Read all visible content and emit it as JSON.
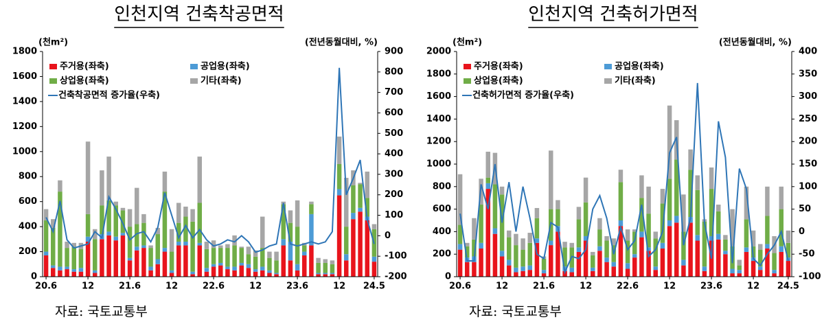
{
  "chart_data": [
    {
      "type": "bar",
      "stacked": true,
      "title": "인천지역 건축착공면적",
      "y_unit_label": "(천m²)",
      "y2_unit_label": "(전년동월대비, %)",
      "source": "자료: 국토교통부",
      "categories": [
        "20.6",
        null,
        null,
        null,
        null,
        null,
        "12",
        null,
        null,
        null,
        null,
        null,
        "21.6",
        null,
        null,
        null,
        null,
        null,
        "12",
        null,
        null,
        null,
        null,
        null,
        "22.6",
        null,
        null,
        null,
        null,
        null,
        "12",
        null,
        null,
        null,
        null,
        null,
        "23.6",
        null,
        null,
        null,
        null,
        null,
        "12",
        null,
        null,
        null,
        null,
        "24.5"
      ],
      "ylim": [
        0,
        1800
      ],
      "yticks": [
        0,
        200,
        400,
        600,
        800,
        1000,
        1200,
        1400,
        1600,
        1800
      ],
      "y2lim": [
        -200,
        900
      ],
      "y2ticks": [
        -200,
        -100,
        0,
        100,
        200,
        300,
        400,
        500,
        600,
        700,
        800,
        900
      ],
      "series": [
        {
          "name": "주거용(좌축)",
          "color": "#e8141c",
          "values": [
            170,
            70,
            50,
            60,
            40,
            40,
            280,
            30,
            300,
            330,
            290,
            330,
            130,
            210,
            230,
            50,
            100,
            200,
            30,
            250,
            250,
            20,
            250,
            40,
            80,
            90,
            60,
            50,
            90,
            70,
            40,
            50,
            30,
            20,
            250,
            130,
            50,
            170,
            250,
            20,
            20,
            20,
            650,
            130,
            460,
            520,
            450,
            120
          ]
        },
        {
          "name": "공업용(좌축)",
          "color": "#4d9bd6",
          "values": [
            30,
            20,
            30,
            20,
            20,
            30,
            40,
            20,
            40,
            30,
            30,
            20,
            20,
            30,
            20,
            30,
            40,
            30,
            20,
            30,
            30,
            20,
            20,
            30,
            20,
            20,
            20,
            30,
            20,
            30,
            20,
            30,
            20,
            10,
            50,
            150,
            50,
            30,
            250,
            10,
            10,
            10,
            50,
            50,
            50,
            30,
            30,
            40
          ]
        },
        {
          "name": "상업용(좌축)",
          "color": "#70ad47",
          "values": [
            250,
            300,
            600,
            150,
            180,
            150,
            180,
            250,
            230,
            250,
            250,
            180,
            250,
            180,
            180,
            150,
            200,
            450,
            150,
            150,
            200,
            400,
            320,
            150,
            130,
            120,
            150,
            170,
            120,
            80,
            100,
            150,
            100,
            100,
            280,
            150,
            300,
            50,
            80,
            80,
            80,
            70,
            200,
            220,
            220,
            190,
            150,
            220
          ]
        },
        {
          "name": "기타(좌축)",
          "color": "#a6a6a6",
          "values": [
            90,
            70,
            90,
            50,
            30,
            50,
            580,
            80,
            280,
            350,
            30,
            20,
            140,
            290,
            70,
            20,
            50,
            160,
            180,
            160,
            80,
            100,
            370,
            60,
            60,
            20,
            30,
            80,
            10,
            60,
            50,
            250,
            50,
            70,
            20,
            100,
            210,
            20,
            20,
            40,
            30,
            30,
            220,
            390,
            120,
            10,
            210,
            40
          ]
        },
        {
          "name": "건축착공면적 증가율(우축)",
          "type": "line",
          "axis": "y2",
          "color": "#2e75b6",
          "values": [
            90,
            20,
            170,
            -20,
            -60,
            -50,
            -40,
            20,
            -10,
            190,
            130,
            60,
            -20,
            10,
            20,
            -30,
            40,
            210,
            100,
            -10,
            50,
            -10,
            30,
            -20,
            -50,
            -40,
            -20,
            -30,
            0,
            -30,
            -80,
            -70,
            -50,
            -40,
            160,
            -40,
            -50,
            -40,
            -30,
            -40,
            -30,
            20,
            820,
            200,
            280,
            370,
            80,
            -40
          ]
        }
      ]
    },
    {
      "type": "bar",
      "stacked": true,
      "title": "인천지역 건축허가면적",
      "y_unit_label": "(천m²)",
      "y2_unit_label": "(전년동월대비, %)",
      "source": "자료: 국토교통부",
      "categories": [
        "20.6",
        null,
        null,
        null,
        null,
        null,
        "12",
        null,
        null,
        null,
        null,
        null,
        "21.6",
        null,
        null,
        null,
        null,
        null,
        "12",
        null,
        null,
        null,
        null,
        null,
        "22.6",
        null,
        null,
        null,
        null,
        null,
        "12",
        null,
        null,
        null,
        null,
        null,
        "23.6",
        null,
        null,
        null,
        null,
        null,
        "12",
        null,
        null,
        null,
        null,
        "24.5"
      ],
      "ylim": [
        0,
        2000
      ],
      "yticks": [
        0,
        200,
        400,
        600,
        800,
        1000,
        1200,
        1400,
        1600,
        1800,
        2000
      ],
      "y2lim": [
        -100,
        400
      ],
      "y2ticks": [
        -100,
        -50,
        0,
        50,
        100,
        150,
        200,
        250,
        300,
        350,
        400
      ],
      "series": [
        {
          "name": "주거용(좌축)",
          "color": "#e8141c",
          "values": [
            240,
            130,
            130,
            250,
            780,
            380,
            180,
            100,
            40,
            50,
            60,
            300,
            30,
            280,
            400,
            50,
            40,
            220,
            320,
            50,
            230,
            130,
            90,
            450,
            70,
            170,
            350,
            230,
            60,
            250,
            450,
            480,
            100,
            480,
            320,
            50,
            320,
            330,
            200,
            30,
            30,
            220,
            140,
            60,
            250,
            30,
            220,
            140
          ]
        },
        {
          "name": "공업용(좌축)",
          "color": "#4d9bd6",
          "values": [
            50,
            40,
            50,
            50,
            50,
            50,
            50,
            50,
            40,
            40,
            40,
            40,
            30,
            40,
            50,
            40,
            40,
            40,
            40,
            30,
            40,
            40,
            40,
            50,
            50,
            30,
            50,
            30,
            30,
            50,
            50,
            60,
            50,
            50,
            50,
            40,
            40,
            50,
            30,
            40,
            30,
            40,
            30,
            30,
            40,
            30,
            50,
            30
          ]
        },
        {
          "name": "상업용(좌축)",
          "color": "#70ad47",
          "values": [
            170,
            100,
            150,
            340,
            50,
            390,
            500,
            200,
            200,
            150,
            200,
            180,
            100,
            280,
            150,
            170,
            180,
            250,
            300,
            110,
            150,
            150,
            150,
            340,
            200,
            200,
            300,
            300,
            250,
            350,
            370,
            500,
            250,
            420,
            400,
            400,
            420,
            200,
            100,
            200,
            40,
            250,
            100,
            150,
            250,
            150,
            330,
            130
          ]
        },
        {
          "name": "기타(좌축)",
          "color": "#a6a6a6",
          "values": [
            450,
            30,
            190,
            230,
            230,
            280,
            70,
            60,
            100,
            100,
            90,
            90,
            20,
            520,
            80,
            50,
            40,
            110,
            220,
            30,
            100,
            40,
            60,
            110,
            100,
            20,
            200,
            240,
            60,
            130,
            650,
            350,
            330,
            180,
            130,
            20,
            190,
            60,
            40,
            330,
            50,
            290,
            140,
            50,
            260,
            150,
            200,
            110
          ]
        },
        {
          "name": "건축허가면적 증가율(우축)",
          "type": "line",
          "axis": "y2",
          "color": "#2e75b6",
          "values": [
            40,
            -65,
            -65,
            105,
            50,
            150,
            20,
            110,
            0,
            100,
            30,
            -50,
            -60,
            20,
            10,
            -90,
            -55,
            -60,
            -40,
            50,
            80,
            30,
            -50,
            10,
            -40,
            -20,
            60,
            -55,
            -40,
            0,
            175,
            210,
            -30,
            30,
            330,
            20,
            -60,
            245,
            165,
            -70,
            140,
            95,
            -60,
            -75,
            -50,
            -30,
            0,
            -65
          ]
        }
      ]
    }
  ]
}
